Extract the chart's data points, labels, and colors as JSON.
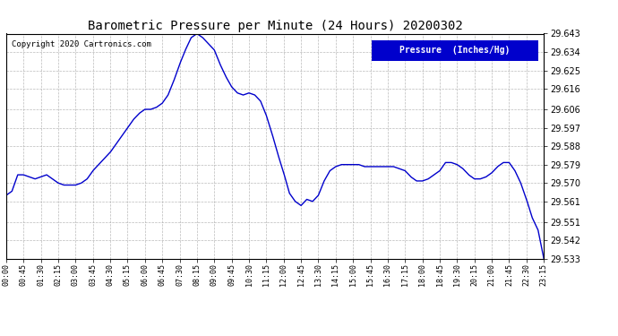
{
  "title": "Barometric Pressure per Minute (24 Hours) 20200302",
  "copyright": "Copyright 2020 Cartronics.com",
  "legend_label": "Pressure  (Inches/Hg)",
  "legend_bg": "#0000cc",
  "legend_fg": "#ffffff",
  "line_color": "#0000cc",
  "line_width": 1.0,
  "bg_color": "#ffffff",
  "grid_color": "#aaaaaa",
  "title_color": "#000000",
  "xlabel_color": "#000000",
  "ylabel_color": "#000000",
  "ylim_min": 29.533,
  "ylim_max": 29.643,
  "ytick_values": [
    29.533,
    29.542,
    29.551,
    29.561,
    29.57,
    29.579,
    29.588,
    29.597,
    29.606,
    29.616,
    29.625,
    29.634,
    29.643
  ],
  "xtick_labels": [
    "00:00",
    "00:45",
    "01:30",
    "02:15",
    "03:00",
    "03:45",
    "04:30",
    "05:15",
    "06:00",
    "06:45",
    "07:30",
    "08:15",
    "09:00",
    "09:45",
    "10:30",
    "11:15",
    "12:00",
    "12:45",
    "13:30",
    "14:15",
    "15:00",
    "15:45",
    "16:30",
    "17:15",
    "18:00",
    "18:45",
    "19:30",
    "20:15",
    "21:00",
    "21:45",
    "22:30",
    "23:15"
  ],
  "ctrl_points": [
    [
      0,
      29.564
    ],
    [
      15,
      29.566
    ],
    [
      30,
      29.574
    ],
    [
      45,
      29.574
    ],
    [
      60,
      29.573
    ],
    [
      75,
      29.572
    ],
    [
      90,
      29.573
    ],
    [
      105,
      29.574
    ],
    [
      120,
      29.572
    ],
    [
      135,
      29.57
    ],
    [
      150,
      29.569
    ],
    [
      165,
      29.569
    ],
    [
      180,
      29.569
    ],
    [
      195,
      29.57
    ],
    [
      210,
      29.572
    ],
    [
      225,
      29.576
    ],
    [
      240,
      29.579
    ],
    [
      255,
      29.582
    ],
    [
      270,
      29.585
    ],
    [
      285,
      29.589
    ],
    [
      300,
      29.593
    ],
    [
      315,
      29.597
    ],
    [
      330,
      29.601
    ],
    [
      345,
      29.604
    ],
    [
      360,
      29.606
    ],
    [
      375,
      29.606
    ],
    [
      390,
      29.607
    ],
    [
      405,
      29.609
    ],
    [
      420,
      29.613
    ],
    [
      435,
      29.62
    ],
    [
      450,
      29.628
    ],
    [
      465,
      29.635
    ],
    [
      480,
      29.641
    ],
    [
      495,
      29.643
    ],
    [
      510,
      29.641
    ],
    [
      525,
      29.638
    ],
    [
      540,
      29.635
    ],
    [
      555,
      29.628
    ],
    [
      570,
      29.622
    ],
    [
      585,
      29.617
    ],
    [
      600,
      29.614
    ],
    [
      615,
      29.613
    ],
    [
      630,
      29.614
    ],
    [
      645,
      29.613
    ],
    [
      660,
      29.61
    ],
    [
      675,
      29.603
    ],
    [
      690,
      29.594
    ],
    [
      705,
      29.584
    ],
    [
      720,
      29.575
    ],
    [
      735,
      29.565
    ],
    [
      750,
      29.561
    ],
    [
      765,
      29.559
    ],
    [
      780,
      29.562
    ],
    [
      795,
      29.561
    ],
    [
      810,
      29.564
    ],
    [
      825,
      29.571
    ],
    [
      840,
      29.576
    ],
    [
      855,
      29.578
    ],
    [
      870,
      29.579
    ],
    [
      885,
      29.579
    ],
    [
      900,
      29.579
    ],
    [
      915,
      29.579
    ],
    [
      930,
      29.578
    ],
    [
      945,
      29.578
    ],
    [
      960,
      29.578
    ],
    [
      975,
      29.578
    ],
    [
      990,
      29.578
    ],
    [
      1005,
      29.578
    ],
    [
      1020,
      29.577
    ],
    [
      1035,
      29.576
    ],
    [
      1050,
      29.573
    ],
    [
      1065,
      29.571
    ],
    [
      1080,
      29.571
    ],
    [
      1095,
      29.572
    ],
    [
      1110,
      29.574
    ],
    [
      1125,
      29.576
    ],
    [
      1140,
      29.58
    ],
    [
      1155,
      29.58
    ],
    [
      1170,
      29.579
    ],
    [
      1185,
      29.577
    ],
    [
      1200,
      29.574
    ],
    [
      1215,
      29.572
    ],
    [
      1230,
      29.572
    ],
    [
      1245,
      29.573
    ],
    [
      1260,
      29.575
    ],
    [
      1275,
      29.578
    ],
    [
      1290,
      29.58
    ],
    [
      1305,
      29.58
    ],
    [
      1320,
      29.576
    ],
    [
      1335,
      29.57
    ],
    [
      1350,
      29.562
    ],
    [
      1365,
      29.553
    ],
    [
      1380,
      29.547
    ],
    [
      1395,
      29.533
    ]
  ]
}
